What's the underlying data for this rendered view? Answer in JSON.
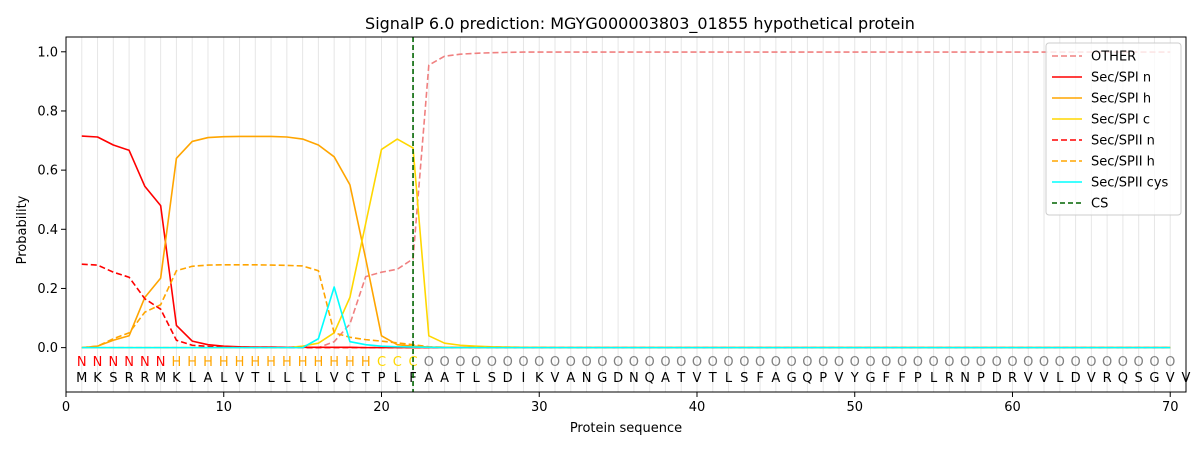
{
  "chart_data": {
    "type": "line",
    "title": "SignalP 6.0 prediction: MGYG000003803_01855 hypothetical protein",
    "xlabel": "Protein sequence",
    "ylabel": "Probability",
    "xlim": [
      0,
      71
    ],
    "ylim": [
      -0.15,
      1.05
    ],
    "xticks": [
      0,
      10,
      20,
      30,
      40,
      50,
      60,
      70
    ],
    "yticks": [
      0.0,
      0.2,
      0.4,
      0.6,
      0.8,
      1.0
    ],
    "ytick_labels": [
      "0.0",
      "0.2",
      "0.4",
      "0.6",
      "0.8",
      "1.0"
    ],
    "legend_position": "top-right",
    "cleavage_site": 22,
    "sequence": "MKSRRMKLALVTLLLLVCTPLFAATLSDIKVANGDNQATVTLSFAGQPVYGFFPLRNPDRVVLDVRQSGVV",
    "region_labels": "NNNNNNHHHHHHHHHHHHHCCCOOOOOOOOOOOOOOOOOOOOOOOOOOOOOOOOOOOOOOOOOOOOOOOO",
    "region_colors": {
      "N": "#ff0000",
      "H": "#ffa500",
      "C": "#ffd700",
      "O": "#808080"
    },
    "series": [
      {
        "name": "OTHER",
        "color": "#f08080",
        "dash": true,
        "values": [
          0.0,
          0.0,
          0.0,
          0.0,
          0.0,
          0.0,
          0.0,
          0.0,
          0.0,
          0.0,
          0.0,
          0.0,
          0.0,
          0.0,
          0.0,
          0.0,
          0.02,
          0.08,
          0.24,
          0.255,
          0.265,
          0.3,
          0.955,
          0.985,
          0.992,
          0.995,
          0.997,
          0.998,
          0.999,
          0.999,
          0.999,
          0.999,
          0.999,
          0.999,
          0.999,
          0.999,
          0.999,
          0.999,
          0.999,
          0.999,
          0.999,
          0.999,
          0.999,
          0.999,
          0.999,
          0.999,
          0.999,
          0.999,
          0.999,
          0.999,
          0.999,
          0.999,
          0.999,
          0.999,
          0.999,
          0.999,
          0.999,
          0.999,
          0.999,
          0.999,
          0.999,
          0.999,
          0.999,
          0.999,
          0.999,
          0.999,
          0.999,
          0.999,
          0.999,
          0.999
        ]
      },
      {
        "name": "Sec/SPI n",
        "color": "#ff0000",
        "dash": false,
        "values": [
          0.715,
          0.712,
          0.685,
          0.667,
          0.545,
          0.48,
          0.075,
          0.022,
          0.01,
          0.005,
          0.003,
          0.002,
          0.002,
          0.001,
          0.001,
          0.001,
          0.001,
          0.001,
          0.0,
          0.0,
          0.0,
          0.0,
          0.0,
          0.0,
          0.0,
          0.0,
          0.0,
          0.0,
          0.0,
          0.0,
          0.0,
          0.0,
          0.0,
          0.0,
          0.0,
          0.0,
          0.0,
          0.0,
          0.0,
          0.0,
          0.0,
          0.0,
          0.0,
          0.0,
          0.0,
          0.0,
          0.0,
          0.0,
          0.0,
          0.0,
          0.0,
          0.0,
          0.0,
          0.0,
          0.0,
          0.0,
          0.0,
          0.0,
          0.0,
          0.0,
          0.0,
          0.0,
          0.0,
          0.0,
          0.0,
          0.0,
          0.0,
          0.0,
          0.0,
          0.0
        ]
      },
      {
        "name": "Sec/SPI h",
        "color": "#ffa500",
        "dash": false,
        "values": [
          0.0,
          0.005,
          0.025,
          0.04,
          0.17,
          0.235,
          0.64,
          0.697,
          0.71,
          0.713,
          0.714,
          0.714,
          0.714,
          0.712,
          0.705,
          0.685,
          0.645,
          0.55,
          0.3,
          0.04,
          0.01,
          0.005,
          0.002,
          0.001,
          0.001,
          0.0,
          0.0,
          0.0,
          0.0,
          0.0,
          0.0,
          0.0,
          0.0,
          0.0,
          0.0,
          0.0,
          0.0,
          0.0,
          0.0,
          0.0,
          0.0,
          0.0,
          0.0,
          0.0,
          0.0,
          0.0,
          0.0,
          0.0,
          0.0,
          0.0,
          0.0,
          0.0,
          0.0,
          0.0,
          0.0,
          0.0,
          0.0,
          0.0,
          0.0,
          0.0,
          0.0,
          0.0,
          0.0,
          0.0,
          0.0,
          0.0,
          0.0,
          0.0,
          0.0,
          0.0
        ]
      },
      {
        "name": "Sec/SPI c",
        "color": "#ffd700",
        "dash": false,
        "values": [
          0.0,
          0.0,
          0.0,
          0.0,
          0.0,
          0.0,
          0.0,
          0.0,
          0.0,
          0.0,
          0.0,
          0.0,
          0.0,
          0.0,
          0.005,
          0.015,
          0.05,
          0.17,
          0.42,
          0.67,
          0.705,
          0.675,
          0.04,
          0.015,
          0.008,
          0.005,
          0.003,
          0.002,
          0.001,
          0.001,
          0.0,
          0.0,
          0.0,
          0.0,
          0.0,
          0.0,
          0.0,
          0.0,
          0.0,
          0.0,
          0.0,
          0.0,
          0.0,
          0.0,
          0.0,
          0.0,
          0.0,
          0.0,
          0.0,
          0.0,
          0.0,
          0.0,
          0.0,
          0.0,
          0.0,
          0.0,
          0.0,
          0.0,
          0.0,
          0.0,
          0.0,
          0.0,
          0.0,
          0.0,
          0.0,
          0.0,
          0.0,
          0.0,
          0.0,
          0.0
        ]
      },
      {
        "name": "Sec/SPII n",
        "color": "#ff0000",
        "dash": true,
        "values": [
          0.282,
          0.279,
          0.255,
          0.238,
          0.165,
          0.13,
          0.025,
          0.008,
          0.004,
          0.002,
          0.001,
          0.001,
          0.001,
          0.001,
          0.0,
          0.0,
          0.0,
          0.0,
          0.0,
          0.0,
          0.0,
          0.0,
          0.0,
          0.0,
          0.0,
          0.0,
          0.0,
          0.0,
          0.0,
          0.0,
          0.0,
          0.0,
          0.0,
          0.0,
          0.0,
          0.0,
          0.0,
          0.0,
          0.0,
          0.0,
          0.0,
          0.0,
          0.0,
          0.0,
          0.0,
          0.0,
          0.0,
          0.0,
          0.0,
          0.0,
          0.0,
          0.0,
          0.0,
          0.0,
          0.0,
          0.0,
          0.0,
          0.0,
          0.0,
          0.0,
          0.0,
          0.0,
          0.0,
          0.0,
          0.0,
          0.0,
          0.0,
          0.0,
          0.0,
          0.0
        ]
      },
      {
        "name": "Sec/SPII h",
        "color": "#ffa500",
        "dash": true,
        "values": [
          0.0,
          0.005,
          0.03,
          0.05,
          0.12,
          0.145,
          0.26,
          0.275,
          0.279,
          0.28,
          0.28,
          0.28,
          0.279,
          0.278,
          0.276,
          0.26,
          0.05,
          0.035,
          0.027,
          0.022,
          0.016,
          0.01,
          0.003,
          0.001,
          0.0,
          0.0,
          0.0,
          0.0,
          0.0,
          0.0,
          0.0,
          0.0,
          0.0,
          0.0,
          0.0,
          0.0,
          0.0,
          0.0,
          0.0,
          0.0,
          0.0,
          0.0,
          0.0,
          0.0,
          0.0,
          0.0,
          0.0,
          0.0,
          0.0,
          0.0,
          0.0,
          0.0,
          0.0,
          0.0,
          0.0,
          0.0,
          0.0,
          0.0,
          0.0,
          0.0,
          0.0,
          0.0,
          0.0,
          0.0,
          0.0,
          0.0,
          0.0,
          0.0,
          0.0,
          0.0
        ]
      },
      {
        "name": "Sec/SPII cys",
        "color": "#00ffff",
        "dash": false,
        "values": [
          0.0,
          0.0,
          0.0,
          0.0,
          0.0,
          0.0,
          0.0,
          0.0,
          0.0,
          0.0,
          0.0,
          0.0,
          0.0,
          0.0,
          0.0,
          0.03,
          0.205,
          0.02,
          0.01,
          0.005,
          0.003,
          0.002,
          0.001,
          0.0,
          0.0,
          0.0,
          0.0,
          0.0,
          0.0,
          0.0,
          0.0,
          0.0,
          0.0,
          0.0,
          0.0,
          0.0,
          0.0,
          0.0,
          0.0,
          0.0,
          0.0,
          0.0,
          0.0,
          0.0,
          0.0,
          0.0,
          0.0,
          0.0,
          0.0,
          0.0,
          0.0,
          0.0,
          0.0,
          0.0,
          0.0,
          0.0,
          0.0,
          0.0,
          0.0,
          0.0,
          0.0,
          0.0,
          0.0,
          0.0,
          0.0,
          0.0,
          0.0,
          0.0,
          0.0,
          0.0
        ]
      }
    ],
    "cs_line": {
      "name": "CS",
      "color": "#006400"
    }
  }
}
